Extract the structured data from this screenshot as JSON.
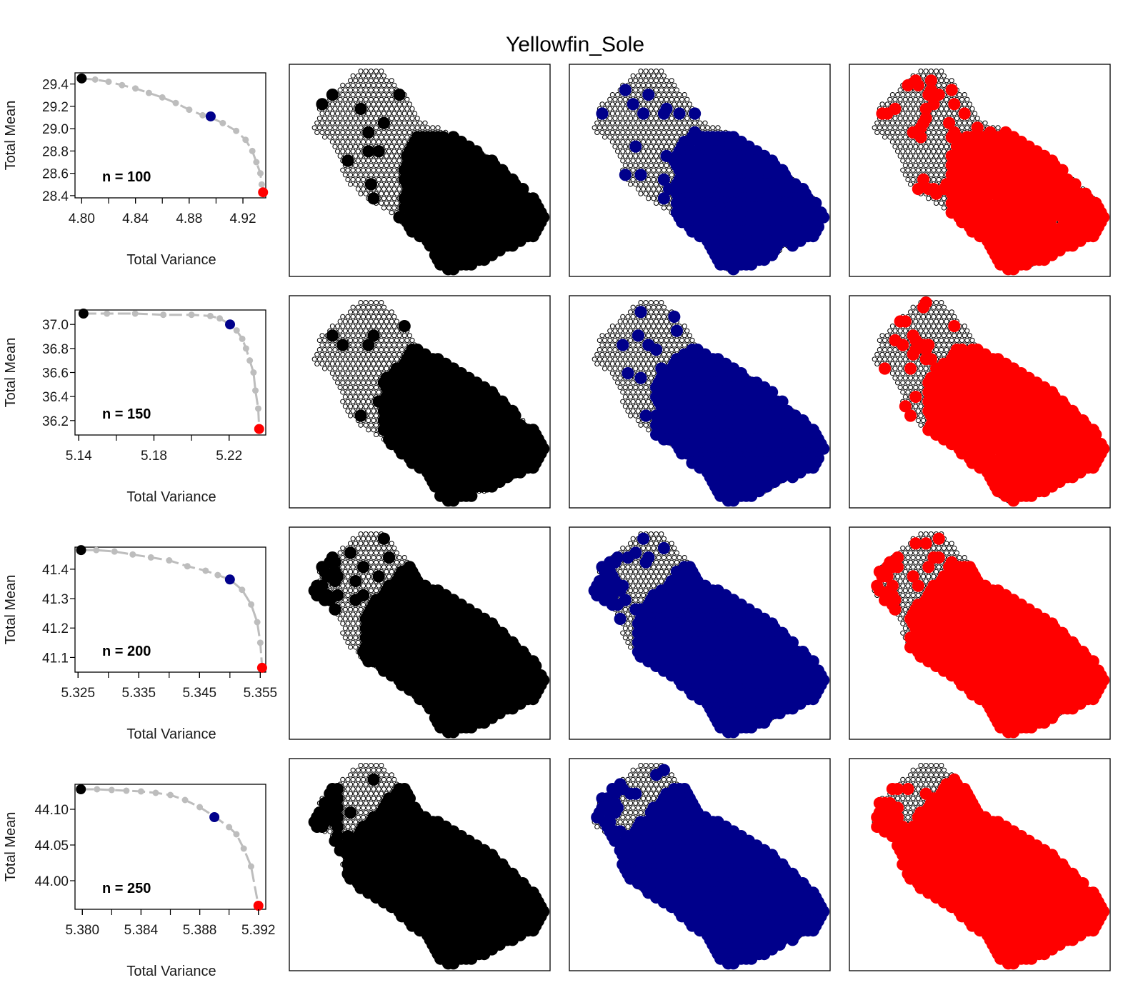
{
  "title": "Yellowfin_Sole",
  "colors": {
    "frontier": "#bdbdbd",
    "black": "#000000",
    "blue": "#00008B",
    "red": "#FF0000",
    "empty_cell": "#000000"
  },
  "chart_data": [
    {
      "type": "line",
      "panel": "frontier-n-100",
      "label": "n = 100",
      "xlabel": "Total Variance",
      "ylabel": "Total Mean",
      "xlim": [
        4.795,
        4.937
      ],
      "ylim": [
        28.38,
        29.5
      ],
      "xticks": [
        "4.80",
        "4.84",
        "4.88",
        "4.92"
      ],
      "yticks": [
        "29.4",
        "29.2",
        "29.0",
        "28.8",
        "28.6",
        "28.4"
      ],
      "series": [
        {
          "x": [
            4.8,
            4.81,
            4.82,
            4.83,
            4.84,
            4.85,
            4.86,
            4.87,
            4.88,
            4.89,
            4.896,
            4.905,
            4.915,
            4.922,
            4.927,
            4.93,
            4.933,
            4.934,
            4.935
          ],
          "y": [
            29.45,
            29.44,
            29.42,
            29.39,
            29.36,
            29.32,
            29.28,
            29.23,
            29.17,
            29.12,
            29.1,
            29.05,
            28.98,
            28.9,
            28.8,
            28.7,
            28.6,
            28.5,
            28.43
          ]
        }
      ],
      "highlights": [
        {
          "color": "black",
          "x": 4.8,
          "y": 29.45
        },
        {
          "color": "blue",
          "x": 4.896,
          "y": 29.11
        },
        {
          "color": "red",
          "x": 4.935,
          "y": 28.43
        }
      ]
    },
    {
      "type": "line",
      "panel": "frontier-n-150",
      "label": "n = 150",
      "xlabel": "Total Variance",
      "ylabel": "Total Mean",
      "xlim": [
        5.138,
        5.2395
      ],
      "ylim": [
        36.08,
        37.12
      ],
      "xticks": [
        "5.14",
        "5.18",
        "5.22"
      ],
      "yticks": [
        "37.0",
        "36.8",
        "36.6",
        "36.4",
        "36.2"
      ],
      "series": [
        {
          "x": [
            5.1425,
            5.155,
            5.17,
            5.185,
            5.2,
            5.21,
            5.215,
            5.2205,
            5.224,
            5.227,
            5.229,
            5.231,
            5.233,
            5.234,
            5.2355,
            5.236
          ],
          "y": [
            37.09,
            37.09,
            37.09,
            37.08,
            37.08,
            37.07,
            37.05,
            37.0,
            36.95,
            36.88,
            36.8,
            36.7,
            36.6,
            36.45,
            36.3,
            36.13
          ]
        }
      ],
      "highlights": [
        {
          "color": "black",
          "x": 5.1425,
          "y": 37.09
        },
        {
          "color": "blue",
          "x": 5.2205,
          "y": 37.0
        },
        {
          "color": "red",
          "x": 5.236,
          "y": 36.13
        }
      ]
    },
    {
      "type": "line",
      "panel": "frontier-n-200",
      "label": "n = 200",
      "xlabel": "Total Variance",
      "ylabel": "Total Mean",
      "xlim": [
        5.3245,
        5.3559
      ],
      "ylim": [
        41.05,
        41.475
      ],
      "xticks": [
        "5.325",
        "5.335",
        "5.345",
        "5.355"
      ],
      "yticks": [
        "41.4",
        "41.3",
        "41.2",
        "41.1"
      ],
      "series": [
        {
          "x": [
            5.3255,
            5.328,
            5.331,
            5.334,
            5.337,
            5.34,
            5.343,
            5.346,
            5.348,
            5.35,
            5.352,
            5.3535,
            5.3545,
            5.355,
            5.3553
          ],
          "y": [
            41.465,
            41.465,
            41.46,
            41.45,
            41.44,
            41.43,
            41.41,
            41.395,
            41.38,
            41.365,
            41.33,
            41.28,
            41.22,
            41.15,
            41.065
          ]
        }
      ],
      "highlights": [
        {
          "color": "black",
          "x": 5.3255,
          "y": 41.465
        },
        {
          "color": "blue",
          "x": 5.35,
          "y": 41.365
        },
        {
          "color": "red",
          "x": 5.3553,
          "y": 41.065
        }
      ]
    },
    {
      "type": "line",
      "panel": "frontier-n-250",
      "label": "n = 250",
      "xlabel": "Total Variance",
      "ylabel": "Total Mean",
      "xlim": [
        5.3795,
        5.3925
      ],
      "ylim": [
        43.96,
        44.135
      ],
      "xticks": [
        "5.380",
        "5.384",
        "5.388",
        "5.392"
      ],
      "yticks": [
        "44.10",
        "44.05",
        "44.00"
      ],
      "series": [
        {
          "x": [
            5.3799,
            5.381,
            5.382,
            5.383,
            5.384,
            5.385,
            5.386,
            5.387,
            5.388,
            5.389,
            5.39,
            5.3905,
            5.391,
            5.3915,
            5.392
          ],
          "y": [
            44.128,
            44.128,
            44.127,
            44.126,
            44.125,
            44.123,
            44.12,
            44.113,
            44.103,
            44.09,
            44.075,
            44.065,
            44.045,
            44.02,
            43.965
          ]
        }
      ],
      "highlights": [
        {
          "color": "black",
          "x": 5.3799,
          "y": 44.128
        },
        {
          "color": "blue",
          "x": 5.389,
          "y": 44.089
        },
        {
          "color": "red",
          "x": 5.392,
          "y": 43.965
        }
      ]
    }
  ],
  "maps": {
    "note_columns": [
      "black",
      "blue",
      "red"
    ],
    "rows": [
      {
        "n": 100,
        "solutions": [
          "black",
          "blue",
          "red"
        ]
      },
      {
        "n": 150,
        "solutions": [
          "black",
          "blue",
          "red"
        ]
      },
      {
        "n": 200,
        "solutions": [
          "black",
          "blue",
          "red"
        ]
      },
      {
        "n": 250,
        "solutions": [
          "black",
          "blue",
          "red"
        ]
      }
    ]
  }
}
